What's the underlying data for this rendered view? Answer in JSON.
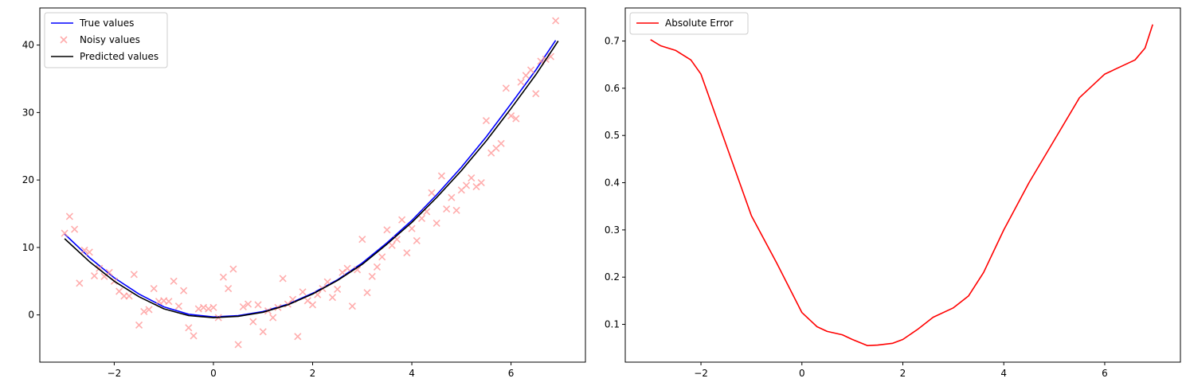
{
  "chart_data": [
    {
      "type": "line",
      "title": "",
      "xlabel": "",
      "ylabel": "",
      "xlim": [
        -3.5,
        7.5
      ],
      "ylim": [
        -7,
        45.5
      ],
      "xticks": [
        -2,
        0,
        2,
        4,
        6
      ],
      "xtick_labels": [
        "−2",
        "0",
        "2",
        "4",
        "6"
      ],
      "yticks": [
        0,
        10,
        20,
        30,
        40
      ],
      "ytick_labels": [
        "0",
        "10",
        "20",
        "30",
        "40"
      ],
      "grid": false,
      "legend_position": "upper-left",
      "series": [
        {
          "name": "True values",
          "kind": "line",
          "color": "#0000ff",
          "x": [
            -3.0,
            -2.5,
            -2.0,
            -1.5,
            -1.0,
            -0.5,
            0.0,
            0.5,
            1.0,
            1.5,
            2.0,
            2.5,
            3.0,
            3.5,
            4.0,
            4.5,
            5.0,
            5.5,
            6.0,
            6.5,
            6.9
          ],
          "y": [
            12.0,
            8.5,
            5.5,
            3.1,
            1.2,
            0.1,
            -0.3,
            -0.1,
            0.5,
            1.6,
            3.2,
            5.2,
            7.7,
            10.7,
            14.0,
            17.8,
            21.9,
            26.4,
            31.3,
            36.3,
            40.7
          ]
        },
        {
          "name": "Noisy values",
          "kind": "scatter",
          "color": "#ff9999",
          "x": [
            -3.0,
            -2.9,
            -2.8,
            -2.7,
            -2.6,
            -2.5,
            -2.4,
            -2.3,
            -2.2,
            -2.1,
            -2.0,
            -1.9,
            -1.8,
            -1.7,
            -1.6,
            -1.5,
            -1.4,
            -1.3,
            -1.2,
            -1.1,
            -1.0,
            -0.9,
            -0.8,
            -0.7,
            -0.6,
            -0.5,
            -0.4,
            -0.3,
            -0.2,
            -0.1,
            0.0,
            0.1,
            0.2,
            0.3,
            0.4,
            0.5,
            0.6,
            0.7,
            0.8,
            0.9,
            1.0,
            1.1,
            1.2,
            1.3,
            1.4,
            1.5,
            1.6,
            1.7,
            1.8,
            1.9,
            2.0,
            2.1,
            2.2,
            2.3,
            2.4,
            2.5,
            2.6,
            2.7,
            2.8,
            2.9,
            3.0,
            3.1,
            3.2,
            3.3,
            3.4,
            3.5,
            3.6,
            3.7,
            3.8,
            3.9,
            4.0,
            4.1,
            4.2,
            4.3,
            4.4,
            4.5,
            4.6,
            4.7,
            4.8,
            4.9,
            5.0,
            5.1,
            5.2,
            5.3,
            5.4,
            5.5,
            5.6,
            5.7,
            5.8,
            5.9,
            6.0,
            6.1,
            6.2,
            6.3,
            6.4,
            6.5,
            6.6,
            6.7,
            6.8,
            6.9
          ],
          "y": [
            12.1,
            14.6,
            12.7,
            4.7,
            9.6,
            9.3,
            5.8,
            6.9,
            5.7,
            6.3,
            5.0,
            3.5,
            2.8,
            2.8,
            6.0,
            -1.5,
            0.5,
            0.8,
            3.9,
            2.0,
            2.1,
            2.0,
            5.0,
            1.3,
            3.6,
            -1.9,
            -3.1,
            0.9,
            1.1,
            0.9,
            1.1,
            -0.4,
            5.6,
            3.9,
            6.8,
            -4.4,
            1.2,
            1.6,
            -1.0,
            1.5,
            -2.5,
            0.6,
            -0.4,
            1.1,
            5.4,
            1.6,
            2.3,
            -3.2,
            3.4,
            2.1,
            1.5,
            3.0,
            3.9,
            4.9,
            2.6,
            3.8,
            6.3,
            6.9,
            1.3,
            6.7,
            11.2,
            3.3,
            5.7,
            7.1,
            8.6,
            12.6,
            10.3,
            11.2,
            14.1,
            9.2,
            12.8,
            11.0,
            14.3,
            15.3,
            18.1,
            13.6,
            20.6,
            15.7,
            17.4,
            15.5,
            18.5,
            19.2,
            20.3,
            19.0,
            19.6,
            28.8,
            24.0,
            24.7,
            25.4,
            33.6,
            29.5,
            29.1,
            34.5,
            35.5,
            36.3,
            32.8,
            37.6,
            37.9,
            38.3,
            43.6
          ]
        },
        {
          "name": "Predicted values",
          "kind": "line",
          "color": "#000000",
          "x": [
            -3.0,
            -2.5,
            -2.0,
            -1.5,
            -1.0,
            -0.5,
            0.0,
            0.5,
            1.0,
            1.5,
            2.0,
            2.5,
            3.0,
            3.5,
            4.0,
            4.5,
            5.0,
            5.5,
            6.0,
            6.5,
            6.95
          ],
          "y": [
            11.3,
            7.9,
            5.0,
            2.7,
            0.9,
            -0.1,
            -0.4,
            -0.2,
            0.4,
            1.5,
            3.1,
            5.1,
            7.5,
            10.5,
            13.7,
            17.4,
            21.4,
            25.8,
            30.6,
            35.6,
            40.6
          ]
        }
      ]
    },
    {
      "type": "line",
      "title": "",
      "xlabel": "",
      "ylabel": "",
      "xlim": [
        -3.5,
        7.5
      ],
      "ylim": [
        0.02,
        0.77
      ],
      "xticks": [
        -2,
        0,
        2,
        4,
        6
      ],
      "xtick_labels": [
        "−2",
        "0",
        "2",
        "4",
        "6"
      ],
      "yticks": [
        0.1,
        0.2,
        0.3,
        0.4,
        0.5,
        0.6,
        0.7
      ],
      "ytick_labels": [
        "0.1",
        "0.2",
        "0.3",
        "0.4",
        "0.5",
        "0.6",
        "0.7"
      ],
      "grid": false,
      "legend_position": "upper-left",
      "series": [
        {
          "name": "Absolute Error",
          "kind": "line",
          "color": "#ff0000",
          "x": [
            -3.0,
            -2.8,
            -2.5,
            -2.2,
            -2.0,
            -1.5,
            -1.0,
            -0.5,
            0.0,
            0.3,
            0.5,
            0.8,
            1.0,
            1.3,
            1.5,
            1.8,
            2.0,
            2.3,
            2.6,
            3.0,
            3.3,
            3.6,
            4.0,
            4.5,
            5.0,
            5.5,
            6.0,
            6.3,
            6.6,
            6.8,
            6.95
          ],
          "y": [
            0.703,
            0.69,
            0.68,
            0.66,
            0.63,
            0.48,
            0.33,
            0.23,
            0.125,
            0.095,
            0.085,
            0.078,
            0.068,
            0.055,
            0.056,
            0.06,
            0.068,
            0.09,
            0.115,
            0.135,
            0.16,
            0.21,
            0.3,
            0.4,
            0.49,
            0.58,
            0.63,
            0.645,
            0.66,
            0.685,
            0.735
          ]
        }
      ]
    }
  ]
}
